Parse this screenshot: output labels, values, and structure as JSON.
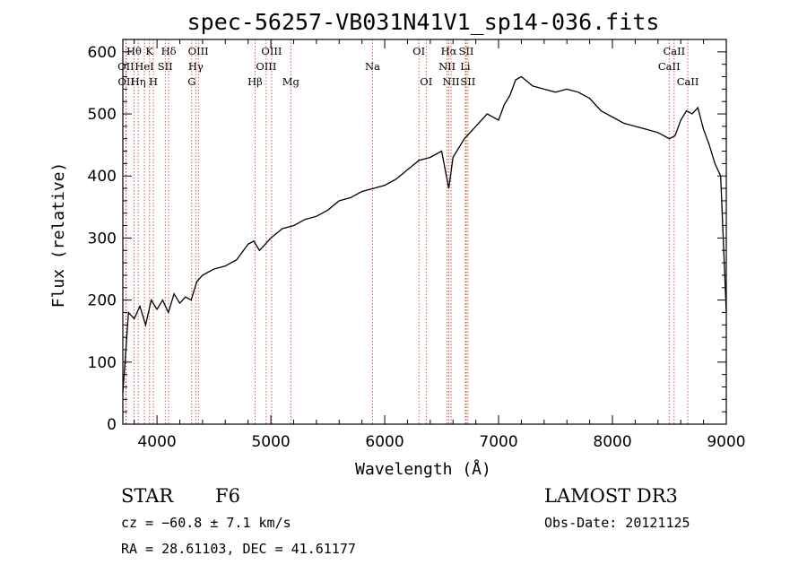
{
  "chart_data": {
    "type": "line",
    "title": "spec-56257-VB031N41V1_sp14-036.fits",
    "xlabel": "Wavelength (Å)",
    "ylabel": "Flux (relative)",
    "xlim": [
      3700,
      9000
    ],
    "ylim": [
      0,
      620
    ],
    "x_ticks": [
      4000,
      5000,
      6000,
      7000,
      8000,
      9000
    ],
    "y_ticks": [
      0,
      100,
      200,
      300,
      400,
      500,
      600
    ],
    "series": [
      {
        "name": "flux",
        "x": [
          3700,
          3750,
          3800,
          3850,
          3900,
          3950,
          4000,
          4050,
          4100,
          4150,
          4200,
          4250,
          4300,
          4350,
          4400,
          4500,
          4600,
          4700,
          4800,
          4850,
          4900,
          5000,
          5100,
          5200,
          5300,
          5400,
          5500,
          5600,
          5700,
          5800,
          5900,
          6000,
          6100,
          6200,
          6300,
          6400,
          6500,
          6563,
          6600,
          6700,
          6800,
          6900,
          7000,
          7050,
          7100,
          7150,
          7200,
          7300,
          7400,
          7500,
          7600,
          7700,
          7800,
          7900,
          8000,
          8100,
          8200,
          8300,
          8400,
          8500,
          8550,
          8600,
          8650,
          8700,
          8750,
          8800,
          8850,
          8900,
          8950,
          9000
        ],
        "y": [
          50,
          180,
          170,
          190,
          160,
          200,
          185,
          200,
          180,
          210,
          195,
          205,
          200,
          230,
          240,
          250,
          255,
          265,
          290,
          295,
          280,
          300,
          315,
          320,
          330,
          335,
          345,
          360,
          365,
          375,
          380,
          385,
          395,
          410,
          425,
          430,
          440,
          380,
          430,
          460,
          480,
          500,
          490,
          515,
          530,
          555,
          560,
          545,
          540,
          535,
          540,
          535,
          525,
          505,
          495,
          485,
          480,
          475,
          470,
          460,
          465,
          490,
          505,
          500,
          510,
          475,
          450,
          420,
          400,
          180
        ]
      }
    ],
    "spectral_lines": [
      {
        "label": "Hθ",
        "wavelength": 3798,
        "row": 1
      },
      {
        "label": "OII",
        "wavelength": 3727,
        "row": 2
      },
      {
        "label": "OII",
        "wavelength": 3729,
        "row": 3
      },
      {
        "label": "HeI",
        "wavelength": 3889,
        "row": 2
      },
      {
        "label": "Hη",
        "wavelength": 3835,
        "row": 3
      },
      {
        "label": "K",
        "wavelength": 3934,
        "row": 1
      },
      {
        "label": "H",
        "wavelength": 3968,
        "row": 3
      },
      {
        "label": "SII",
        "wavelength": 4072,
        "row": 2
      },
      {
        "label": "Hδ",
        "wavelength": 4102,
        "row": 1
      },
      {
        "label": "OIII",
        "wavelength": 4363,
        "row": 1
      },
      {
        "label": "Hγ",
        "wavelength": 4340,
        "row": 2
      },
      {
        "label": "G",
        "wavelength": 4305,
        "row": 3
      },
      {
        "label": "Hβ",
        "wavelength": 4861,
        "row": 3
      },
      {
        "label": "OIII",
        "wavelength": 5007,
        "row": 1
      },
      {
        "label": "OIII",
        "wavelength": 4959,
        "row": 2
      },
      {
        "label": "Mg",
        "wavelength": 5175,
        "row": 3
      },
      {
        "label": "Na",
        "wavelength": 5893,
        "row": 2
      },
      {
        "label": "OI",
        "wavelength": 6300,
        "row": 1
      },
      {
        "label": "OI",
        "wavelength": 6364,
        "row": 3
      },
      {
        "label": "Hα",
        "wavelength": 6563,
        "row": 1
      },
      {
        "label": "NII",
        "wavelength": 6548,
        "row": 2
      },
      {
        "label": "NII",
        "wavelength": 6583,
        "row": 3
      },
      {
        "label": "SII",
        "wavelength": 6716,
        "row": 1
      },
      {
        "label": "Li",
        "wavelength": 6708,
        "row": 2
      },
      {
        "label": "SII",
        "wavelength": 6731,
        "row": 3
      },
      {
        "label": "CaII",
        "wavelength": 8542,
        "row": 1
      },
      {
        "label": "CaII",
        "wavelength": 8498,
        "row": 2
      },
      {
        "label": "CaII",
        "wavelength": 8662,
        "row": 3
      }
    ]
  },
  "info": {
    "class": "STAR",
    "subclass": "F6",
    "survey": "LAMOST DR3",
    "cz": "cz = −60.8 ± 7.1 km/s",
    "obs_date": "Obs-Date: 20121125",
    "coords": "RA =  28.61103, DEC =  41.61177"
  }
}
